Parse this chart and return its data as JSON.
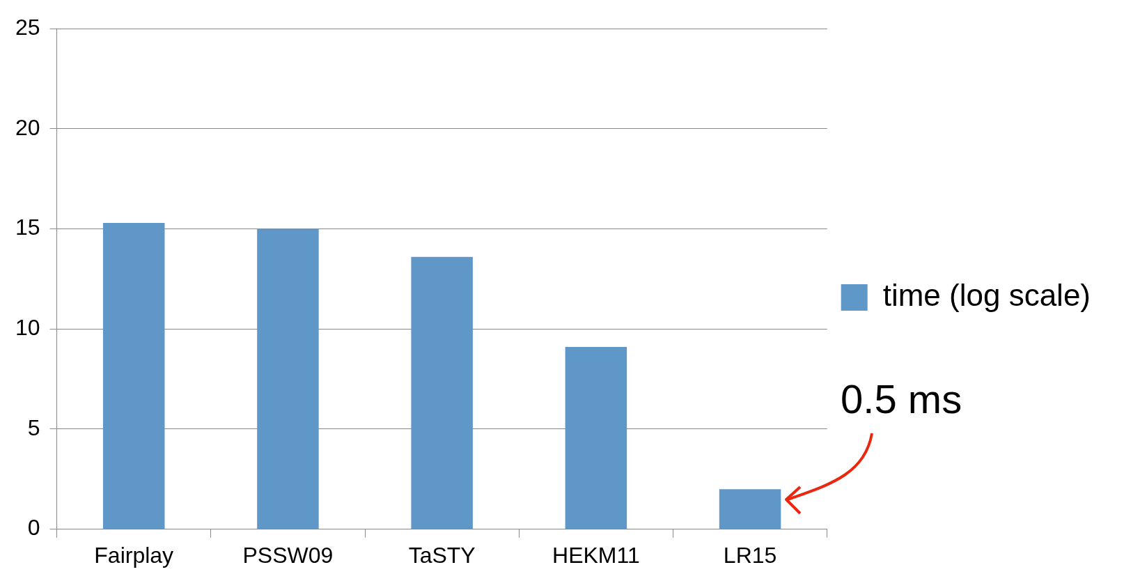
{
  "chart_data": {
    "type": "bar",
    "categories": [
      "Fairplay",
      "PSSW09",
      "TaSTY",
      "HEKM11",
      "LR15"
    ],
    "series": [
      {
        "name": "time (log scale)",
        "color": "#6097c9",
        "values": [
          15.3,
          15.0,
          13.6,
          9.1,
          2.0
        ]
      }
    ],
    "ylim": [
      0,
      25
    ],
    "yticks": [
      0,
      5,
      10,
      15,
      20,
      25
    ],
    "grid": "y",
    "legend": "right",
    "annotations": [
      {
        "text": "0.5 ms",
        "x": "LR15",
        "y": 2.0
      }
    ]
  }
}
